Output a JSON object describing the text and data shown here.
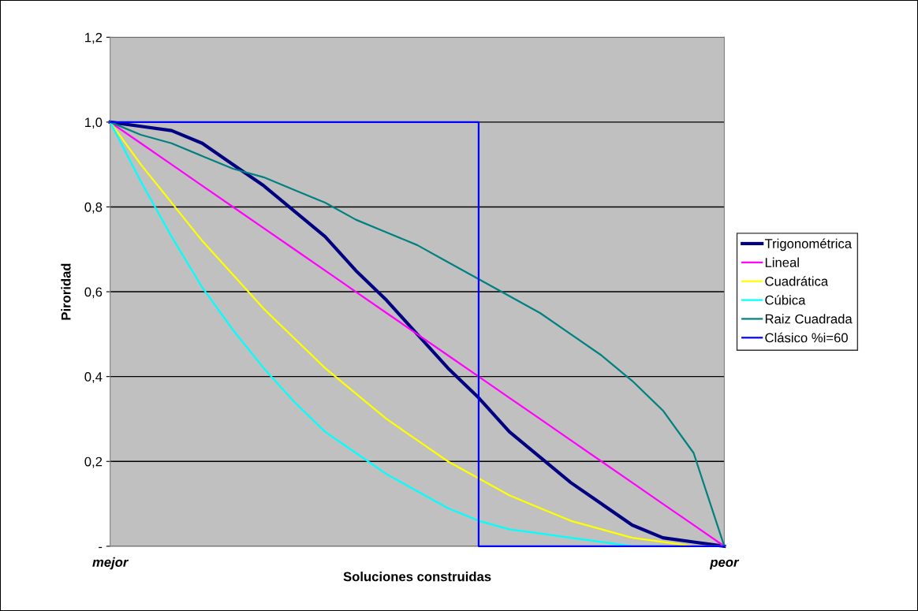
{
  "chart_data": {
    "type": "line",
    "xlabel": "Soluciones construidas",
    "ylabel": "Piroridad",
    "categories": [
      "mejor",
      null,
      null,
      null,
      null,
      null,
      null,
      null,
      null,
      null,
      null,
      null,
      null,
      null,
      null,
      null,
      null,
      null,
      null,
      null,
      "peor"
    ],
    "ylim": [
      0,
      1.2
    ],
    "yticks": [
      {
        "value": 0,
        "label": "-"
      },
      {
        "value": 0.2,
        "label": "0,2"
      },
      {
        "value": 0.4,
        "label": "0,4"
      },
      {
        "value": 0.6,
        "label": "0,6"
      },
      {
        "value": 0.8,
        "label": "0,8"
      },
      {
        "value": 1.0,
        "label": "1,0"
      },
      {
        "value": 1.2,
        "label": "1,2"
      }
    ],
    "grid": "y",
    "legend": "right",
    "marker": "none",
    "series": [
      {
        "name": "Trigonométrica",
        "color": "#000080",
        "values": [
          1,
          0.99,
          0.98,
          0.95,
          0.9,
          0.85,
          0.79,
          0.73,
          0.65,
          0.58,
          0.5,
          0.42,
          0.35,
          0.27,
          0.21,
          0.15,
          0.1,
          0.05,
          0.02,
          0.01,
          0
        ]
      },
      {
        "name": "Lineal",
        "color": "#ff00ff",
        "values": [
          1,
          0.95,
          0.9,
          0.85,
          0.8,
          0.75,
          0.7,
          0.65,
          0.6,
          0.55,
          0.5,
          0.45,
          0.4,
          0.35,
          0.3,
          0.25,
          0.2,
          0.15,
          0.1,
          0.05,
          0
        ]
      },
      {
        "name": "Cuadrática",
        "color": "#ffff00",
        "values": [
          1,
          0.9,
          0.81,
          0.72,
          0.64,
          0.56,
          0.49,
          0.42,
          0.36,
          0.3,
          0.25,
          0.2,
          0.16,
          0.12,
          0.09,
          0.06,
          0.04,
          0.02,
          0.01,
          0,
          0
        ]
      },
      {
        "name": "Cúbica",
        "color": "#00ffff",
        "values": [
          1,
          0.86,
          0.73,
          0.61,
          0.51,
          0.42,
          0.34,
          0.27,
          0.22,
          0.17,
          0.13,
          0.09,
          0.06,
          0.04,
          0.03,
          0.02,
          0.01,
          0,
          0,
          null,
          null
        ]
      },
      {
        "name": "Raiz Cuadrada",
        "color": "#008080",
        "values": [
          1,
          0.97,
          0.95,
          0.92,
          0.89,
          0.87,
          0.84,
          0.81,
          0.77,
          0.74,
          0.71,
          0.67,
          0.63,
          0.59,
          0.55,
          0.5,
          0.45,
          0.39,
          0.32,
          0.22,
          0
        ]
      },
      {
        "name": "Clásico %i=60",
        "color": "#0000ff",
        "type": "step",
        "values": [
          1,
          1,
          1,
          1,
          1,
          1,
          1,
          1,
          1,
          1,
          1,
          1,
          0,
          0,
          0,
          0,
          0,
          0,
          0,
          0,
          0
        ]
      }
    ]
  }
}
